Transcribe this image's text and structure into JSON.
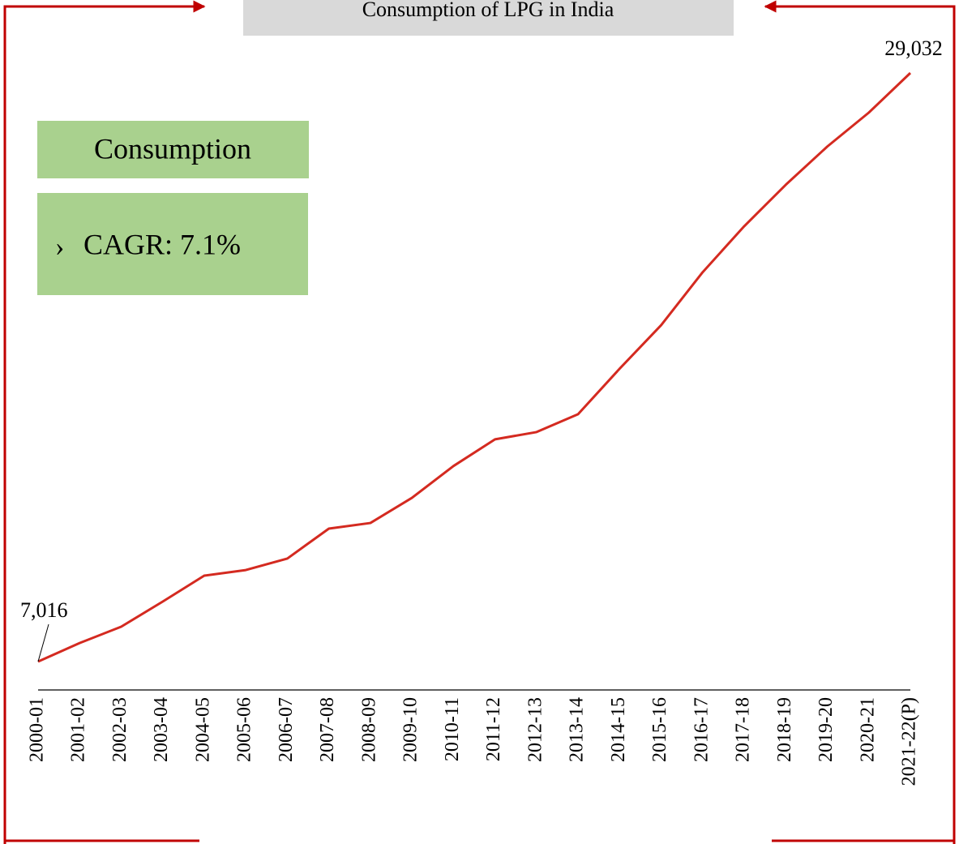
{
  "chart_data": {
    "type": "line",
    "title": "Consumption of LPG in India",
    "annotations": {
      "box_title": "Consumption",
      "bullet": "›",
      "bullet_text": "CAGR: 7.1%"
    },
    "categories": [
      "2000-01",
      "2001-02",
      "2002-03",
      "2003-04",
      "2004-05",
      "2005-06",
      "2006-07",
      "2007-08",
      "2008-09",
      "2009-10",
      "2010-11",
      "2011-12",
      "2012-13",
      "2013-14",
      "2014-15",
      "2015-16",
      "2016-17",
      "2017-18",
      "2018-19",
      "2019-20",
      "2020-21",
      "2021-22(P)"
    ],
    "values": [
      7016,
      7710,
      8320,
      9260,
      10230,
      10440,
      10870,
      11990,
      12200,
      13140,
      14330,
      15330,
      15600,
      16270,
      17970,
      19600,
      21580,
      23300,
      24850,
      26280,
      27550,
      29032
    ],
    "value_labels": [
      "7,016",
      null,
      null,
      null,
      null,
      null,
      null,
      null,
      null,
      null,
      null,
      null,
      null,
      null,
      null,
      null,
      null,
      null,
      null,
      null,
      null,
      "29,032"
    ],
    "color": "#d42a20"
  }
}
